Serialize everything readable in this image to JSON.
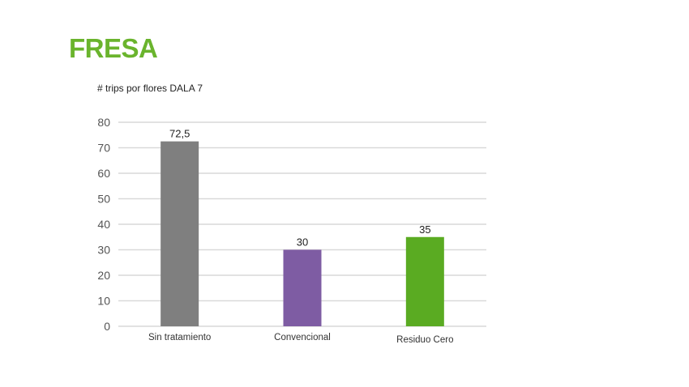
{
  "header": {
    "title": "FRESA"
  },
  "colors": {
    "title": "#6ab42d",
    "grid": "#d9d9d9"
  },
  "chart_data": {
    "type": "bar",
    "title": "# trips por flores DALA 7",
    "xlabel": "",
    "ylabel": "",
    "ylim": [
      0,
      80
    ],
    "yticks": [
      0,
      10,
      20,
      30,
      40,
      50,
      60,
      70,
      80
    ],
    "grid": true,
    "legend": "none",
    "categories": [
      "Sin tratamiento",
      "Convencional",
      "Residuo Cero"
    ],
    "values": [
      72.5,
      30,
      35
    ],
    "value_labels": [
      "72,5",
      "30",
      "35"
    ],
    "bar_colors": [
      "#7f7f7f",
      "#7e5ca3",
      "#5aab22"
    ]
  }
}
